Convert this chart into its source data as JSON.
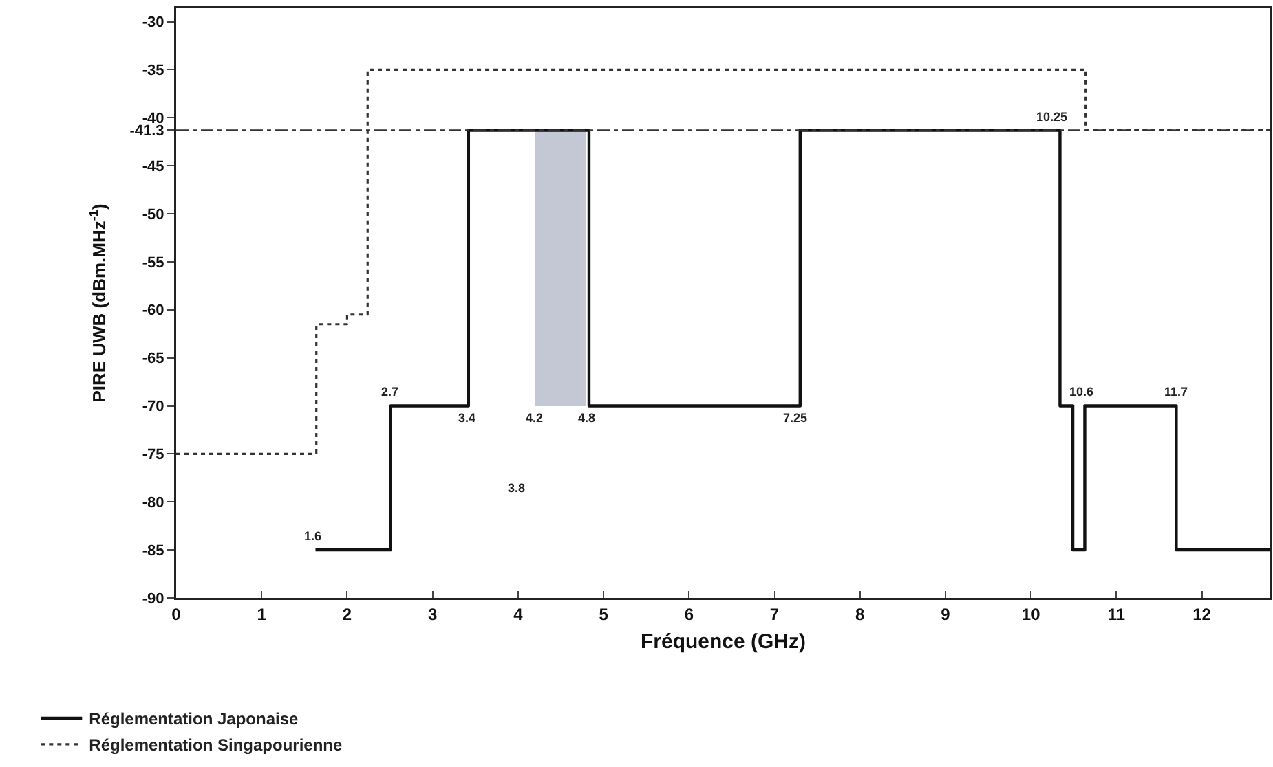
{
  "chart_data": {
    "type": "step",
    "xlabel": "Fréquence (GHz)",
    "ylabel": "PIRE UWB (dBm.MHz$^{-1}$)",
    "xlim": [
      0,
      12.8
    ],
    "ylim": [
      -90,
      -28.6
    ],
    "xticks": [
      0,
      1,
      2,
      3,
      4,
      5,
      6,
      7,
      8,
      9,
      10,
      11,
      12
    ],
    "yticks": [
      -90,
      -85,
      -80,
      -75,
      -70,
      -65,
      -60,
      -55,
      -50,
      -45,
      -40,
      -41.3,
      -35,
      -30
    ],
    "grid": false,
    "legend": "bottom left",
    "series": [
      {
        "name": "Réglementation Japonaise",
        "color": "#111111",
        "line_style": "solid",
        "x": [
          1.63,
          2.51,
          3.42,
          4.83,
          7.3,
          10.34,
          10.49,
          10.63,
          11.7,
          12.8
        ],
        "values": [
          -85,
          -70,
          -41.3,
          -70,
          -41.3,
          -70,
          -85,
          -70,
          -85,
          -85
        ]
      },
      {
        "name": "Réglementation Singapourienne",
        "color": "#333333",
        "line_style": "dotted",
        "x": [
          0,
          1.64,
          2.0,
          2.24,
          10.64,
          12.8
        ],
        "values": [
          -75,
          -61.5,
          -60.5,
          -35,
          -41.3,
          -41.3
        ]
      },
      {
        "type": "bar",
        "color": "#c3c8d4",
        "x": [
          4.5
        ],
        "base": [
          -70
        ],
        "values": [
          28.7
        ]
      }
    ],
    "ref_lines": [
      {
        "axis": "y",
        "value": -41.3,
        "color": "#333333",
        "line_style": "dashed"
      }
    ],
    "annotations": [
      {
        "text": "1.6",
        "x": 1.6,
        "y": -85
      },
      {
        "text": "2.7",
        "x": 2.5,
        "y": -70
      },
      {
        "text": "3.4",
        "x": 3.4,
        "y": -70
      },
      {
        "text": "4.2",
        "x": 4.2,
        "y": -70
      },
      {
        "text": "4.8",
        "x": 4.8,
        "y": -70
      },
      {
        "text": "7.25",
        "x": 7.25,
        "y": -70
      },
      {
        "text": "10.25",
        "x": 10.25,
        "y": -41.3
      },
      {
        "text": "10.6",
        "x": 10.6,
        "y": -70
      },
      {
        "text": "11.7",
        "x": 11.7,
        "y": -70
      },
      "3.8"
    ]
  }
}
